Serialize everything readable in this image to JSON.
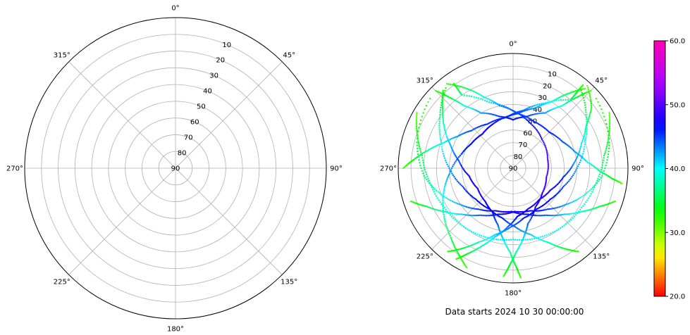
{
  "caption": "Data starts 2024 10 30 00:00:00",
  "chart_data": [
    {
      "type": "polar",
      "theta_zero": "N",
      "theta_direction": "clockwise",
      "theta_ticks": [
        "0°",
        "45°",
        "90°",
        "135°",
        "180°",
        "225°",
        "270°",
        "315°"
      ],
      "r_ticks": [
        "10",
        "20",
        "30",
        "40",
        "50",
        "60",
        "70",
        "80",
        "90"
      ],
      "r_axis": "elevation (90 at centre, 0 at rim)",
      "grid": true,
      "points": []
    },
    {
      "type": "scatter",
      "projection": "polar",
      "theta_zero": "N",
      "theta_direction": "clockwise",
      "theta_ticks": [
        "0°",
        "45°",
        "90°",
        "135°",
        "180°",
        "225°",
        "270°",
        "315°"
      ],
      "r_ticks": [
        "10",
        "20",
        "30",
        "40",
        "50",
        "60",
        "70",
        "80",
        "90"
      ],
      "grid": true,
      "colormap": "gist_rainbow_r",
      "colorbar": {
        "min": 20.0,
        "max": 60.0,
        "ticks": [
          "20.0",
          "30.0",
          "40.0",
          "50.0",
          "60.0"
        ]
      },
      "tracks": [
        {
          "points": [
            [
              40,
              5
            ],
            [
              40,
              12
            ],
            [
              40,
              20
            ],
            [
              25,
              34
            ],
            [
              10,
              44
            ],
            [
              355,
              49
            ],
            [
              335,
              52
            ],
            [
              318,
              54
            ],
            [
              300,
              52
            ],
            [
              285,
              48
            ],
            [
              265,
              40
            ],
            [
              250,
              32
            ],
            [
              235,
              24
            ],
            [
              222,
              17
            ],
            [
              212,
              10
            ],
            [
              205,
              4
            ]
          ]
        },
        {
          "points": [
            [
              42,
              3
            ],
            [
              52,
              12
            ],
            [
              60,
              24
            ],
            [
              70,
              33
            ],
            [
              85,
              42
            ],
            [
              100,
              50
            ],
            [
              120,
              56
            ],
            [
              140,
              58
            ],
            [
              160,
              56
            ],
            [
              175,
              52
            ],
            [
              185,
              44
            ],
            [
              195,
              34
            ],
            [
              202,
              24
            ],
            [
              208,
              14
            ],
            [
              212,
              6
            ]
          ]
        },
        {
          "points": [
            [
              325,
              9
            ],
            [
              325,
              20
            ],
            [
              340,
              35
            ],
            [
              0,
              45
            ],
            [
              20,
              52
            ],
            [
              45,
              58
            ],
            [
              75,
              62
            ],
            [
              105,
              63
            ],
            [
              130,
              60
            ],
            [
              150,
              55
            ],
            [
              165,
              45
            ],
            [
              172,
              34
            ],
            [
              178,
              24
            ],
            [
              182,
              14
            ],
            [
              185,
              5
            ]
          ]
        },
        {
          "points": [
            [
              318,
              8
            ],
            [
              310,
              18
            ],
            [
              300,
              28
            ],
            [
              290,
              38
            ],
            [
              278,
              47
            ],
            [
              260,
              55
            ],
            [
              240,
              58
            ],
            [
              220,
              56
            ],
            [
              205,
              52
            ],
            [
              195,
              44
            ],
            [
              188,
              34
            ],
            [
              182,
              24
            ],
            [
              178,
              12
            ],
            [
              176,
              4
            ]
          ]
        },
        {
          "points": [
            [
              42,
              6
            ],
            [
              36,
              18
            ],
            [
              30,
              30
            ],
            [
              20,
              40
            ],
            [
              5,
              47
            ],
            [
              350,
              50
            ],
            [
              330,
              50
            ],
            [
              312,
              46
            ],
            [
              300,
              40
            ],
            [
              290,
              32
            ],
            [
              282,
              22
            ],
            [
              275,
              12
            ],
            [
              270,
              4
            ]
          ]
        },
        {
          "points": [
            [
              322,
              6
            ],
            [
              330,
              18
            ],
            [
              338,
              30
            ],
            [
              348,
              40
            ],
            [
              5,
              47
            ],
            [
              25,
              50
            ],
            [
              45,
              50
            ],
            [
              62,
              46
            ],
            [
              75,
              40
            ],
            [
              85,
              32
            ],
            [
              92,
              22
            ],
            [
              96,
              12
            ],
            [
              98,
              4
            ]
          ]
        },
        {
          "points": [
            [
              40,
              8
            ],
            [
              55,
              20
            ],
            [
              70,
              30
            ],
            [
              90,
              40
            ],
            [
              110,
              48
            ],
            [
              130,
              52
            ],
            [
              150,
              53
            ],
            [
              168,
              50
            ],
            [
              182,
              44
            ],
            [
              195,
              36
            ],
            [
              205,
              26
            ],
            [
              212,
              16
            ],
            [
              218,
              7
            ]
          ]
        },
        {
          "points": [
            [
              320,
              8
            ],
            [
              305,
              20
            ],
            [
              290,
              30
            ],
            [
              270,
              40
            ],
            [
              250,
              48
            ],
            [
              230,
              52
            ],
            [
              210,
              53
            ],
            [
              192,
              50
            ],
            [
              178,
              44
            ],
            [
              165,
              36
            ],
            [
              155,
              26
            ],
            [
              148,
              16
            ],
            [
              142,
              7
            ]
          ]
        },
        {
          "points": [
            [
              50,
              5
            ],
            [
              75,
              12
            ],
            [
              95,
              20
            ],
            [
              110,
              30
            ],
            [
              125,
              40
            ],
            [
              140,
              48
            ],
            [
              158,
              54
            ],
            [
              178,
              56
            ],
            [
              198,
              52
            ],
            [
              215,
              45
            ],
            [
              228,
              36
            ],
            [
              238,
              26
            ],
            [
              246,
              16
            ],
            [
              252,
              6
            ]
          ]
        },
        {
          "points": [
            [
              310,
              5
            ],
            [
              285,
              12
            ],
            [
              265,
              20
            ],
            [
              250,
              30
            ],
            [
              235,
              40
            ],
            [
              220,
              48
            ],
            [
              202,
              54
            ],
            [
              182,
              56
            ],
            [
              162,
              52
            ],
            [
              145,
              45
            ],
            [
              132,
              36
            ],
            [
              122,
              26
            ],
            [
              114,
              16
            ],
            [
              108,
              6
            ]
          ]
        },
        {
          "points": [
            [
              315,
              4
            ],
            [
              318,
              15
            ],
            [
              322,
              28
            ],
            [
              330,
              40
            ],
            [
              345,
              48
            ],
            [
              0,
              52
            ],
            [
              15,
              48
            ],
            [
              30,
              40
            ],
            [
              38,
              28
            ],
            [
              42,
              15
            ],
            [
              45,
              4
            ]
          ]
        },
        {
          "points": [
            [
              60,
              3
            ],
            [
              70,
              10
            ],
            [
              82,
              18
            ],
            [
              100,
              24
            ],
            [
              120,
              28
            ],
            [
              140,
              30
            ],
            [
              160,
              32
            ],
            [
              180,
              34
            ],
            [
              200,
              32
            ],
            [
              220,
              30
            ],
            [
              240,
              28
            ],
            [
              260,
              24
            ],
            [
              278,
              18
            ],
            [
              290,
              10
            ],
            [
              300,
              3
            ]
          ]
        }
      ]
    }
  ]
}
